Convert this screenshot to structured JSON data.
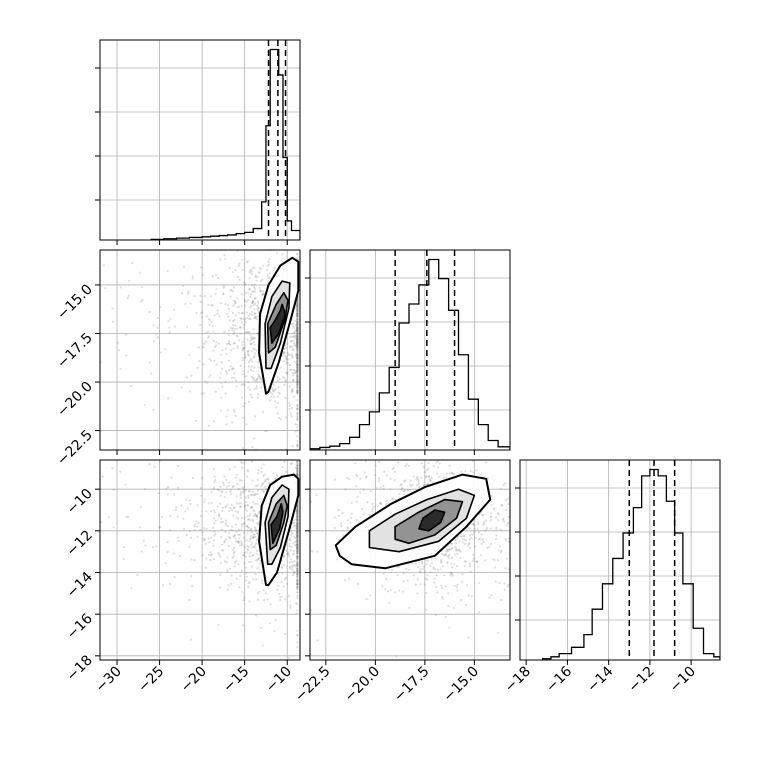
{
  "chart_data": [
    {
      "panel": "hist-x",
      "type": "histogram",
      "xlim": [
        -32,
        -8.5
      ],
      "xticks": [
        -30,
        -25,
        -20,
        -15,
        -10
      ],
      "bins": [
        -26.0,
        -24.5,
        -23.0,
        -21.5,
        -20.0,
        -19.0,
        -18.0,
        -17.0,
        -16.0,
        -15.0,
        -14.0,
        -13.0,
        -12.5,
        -12.0,
        -11.5,
        -11.0,
        -10.5,
        -10.0,
        -9.5,
        -8.5
      ],
      "counts": [
        1,
        2,
        3,
        4,
        5,
        6,
        7,
        8,
        10,
        12,
        18,
        60,
        180,
        300,
        300,
        260,
        130,
        30,
        15
      ],
      "quantiles": [
        -12.2,
        -11.1,
        -10.2
      ],
      "grid": true
    },
    {
      "panel": "hist-y",
      "type": "histogram",
      "xlim": [
        -23.3,
        -13.2
      ],
      "bins": [
        -23.3,
        -22.8,
        -22.3,
        -21.8,
        -21.3,
        -20.8,
        -20.3,
        -19.8,
        -19.3,
        -18.8,
        -18.3,
        -17.8,
        -17.3,
        -16.8,
        -16.3,
        -15.8,
        -15.3,
        -14.8,
        -14.3,
        -13.8,
        -13.2
      ],
      "counts": [
        2,
        4,
        6,
        10,
        20,
        40,
        60,
        90,
        130,
        200,
        230,
        260,
        300,
        270,
        220,
        150,
        80,
        40,
        15,
        5
      ],
      "quantiles": [
        -19.0,
        -17.4,
        -16.0
      ],
      "grid": true
    },
    {
      "panel": "hist-z",
      "type": "histogram",
      "xlim": [
        -18.3,
        -8.6
      ],
      "bins": [
        -17.2,
        -16.8,
        -16.4,
        -15.8,
        -15.2,
        -14.8,
        -14.3,
        -13.8,
        -13.3,
        -12.8,
        -12.4,
        -12.0,
        -11.6,
        -11.2,
        -10.8,
        -10.4,
        -9.9,
        -9.4,
        -8.9,
        -8.6
      ],
      "counts": [
        2,
        5,
        10,
        20,
        40,
        80,
        120,
        160,
        200,
        240,
        290,
        300,
        290,
        250,
        200,
        120,
        50,
        10,
        5
      ],
      "quantiles": [
        -13.0,
        -11.8,
        -10.8
      ],
      "grid": true
    },
    {
      "panel": "x-y",
      "type": "scatter-contour",
      "xlim": [
        -32,
        -8.5
      ],
      "ylim": [
        -23.5,
        -13.2
      ],
      "yticks": [
        -15.0,
        -17.5,
        -20.0,
        -22.5
      ],
      "ytick_labels": [
        "−15.0",
        "−17.5",
        "−20.0",
        "−22.5"
      ],
      "center": [
        -11.0,
        -17.4
      ],
      "levels": [
        {
          "points": [
            [
              -12.5,
              -20.6
            ],
            [
              -13.3,
              -18.5
            ],
            [
              -13.2,
              -16.5
            ],
            [
              -12.2,
              -15.0
            ],
            [
              -10.8,
              -14.0
            ],
            [
              -9.4,
              -13.6
            ],
            [
              -8.7,
              -13.8
            ],
            [
              -8.7,
              -15.3
            ],
            [
              -9.6,
              -16.8
            ],
            [
              -11.0,
              -19.0
            ],
            [
              -12.2,
              -20.5
            ]
          ],
          "fill": "#ffffff"
        },
        {
          "points": [
            [
              -12.5,
              -19.3
            ],
            [
              -12.6,
              -17.0
            ],
            [
              -11.8,
              -15.6
            ],
            [
              -10.6,
              -14.8
            ],
            [
              -9.7,
              -14.9
            ],
            [
              -9.8,
              -16.2
            ],
            [
              -10.8,
              -18.0
            ],
            [
              -11.9,
              -19.3
            ]
          ],
          "fill": "#e0e0e0"
        },
        {
          "points": [
            [
              -12.2,
              -18.5
            ],
            [
              -12.3,
              -17.0
            ],
            [
              -11.3,
              -16.0
            ],
            [
              -10.4,
              -15.4
            ],
            [
              -9.9,
              -15.8
            ],
            [
              -10.3,
              -16.8
            ],
            [
              -11.4,
              -18.2
            ]
          ],
          "fill": "#8c8c8c"
        },
        {
          "points": [
            [
              -11.8,
              -18.0
            ],
            [
              -12.0,
              -17.2
            ],
            [
              -11.4,
              -16.8
            ],
            [
              -10.8,
              -16.3
            ],
            [
              -10.6,
              -16.0
            ],
            [
              -10.2,
              -16.5
            ],
            [
              -11.0,
              -17.5
            ]
          ],
          "fill": "#222222"
        }
      ],
      "scatter_spread": [
        4.2,
        2.0
      ]
    },
    {
      "panel": "x-z",
      "type": "scatter-contour",
      "xlim": [
        -32,
        -8.5
      ],
      "ylim": [
        -18.2,
        -8.6
      ],
      "xticks": [
        -30,
        -25,
        -20,
        -15,
        -10
      ],
      "xtick_labels": [
        "−30",
        "−25",
        "−20",
        "−15",
        "−10"
      ],
      "yticks": [
        -10,
        -12,
        -14,
        -16,
        -18
      ],
      "ytick_labels": [
        "−10",
        "−12",
        "−14",
        "−16",
        "−18"
      ],
      "center": [
        -11.0,
        -11.5
      ],
      "levels": [
        {
          "points": [
            [
              -12.5,
              -14.6
            ],
            [
              -13.3,
              -12.5
            ],
            [
              -13.0,
              -10.8
            ],
            [
              -12.0,
              -9.8
            ],
            [
              -10.6,
              -9.4
            ],
            [
              -9.2,
              -9.3
            ],
            [
              -8.7,
              -9.5
            ],
            [
              -8.7,
              -10.3
            ],
            [
              -9.8,
              -12.0
            ],
            [
              -11.2,
              -14.0
            ],
            [
              -12.2,
              -14.6
            ]
          ],
          "fill": "#ffffff"
        },
        {
          "points": [
            [
              -12.3,
              -13.6
            ],
            [
              -12.6,
              -11.6
            ],
            [
              -11.8,
              -10.4
            ],
            [
              -10.6,
              -9.8
            ],
            [
              -9.8,
              -10.0
            ],
            [
              -9.9,
              -11.3
            ],
            [
              -10.8,
              -12.8
            ],
            [
              -11.8,
              -13.6
            ]
          ],
          "fill": "#e0e0e0"
        },
        {
          "points": [
            [
              -12.0,
              -12.9
            ],
            [
              -12.2,
              -11.6
            ],
            [
              -11.3,
              -10.7
            ],
            [
              -10.4,
              -10.3
            ],
            [
              -10.0,
              -10.8
            ],
            [
              -10.4,
              -11.6
            ],
            [
              -11.3,
              -12.7
            ]
          ],
          "fill": "#8c8c8c"
        },
        {
          "points": [
            [
              -11.7,
              -12.6
            ],
            [
              -11.9,
              -11.7
            ],
            [
              -11.2,
              -11.3
            ],
            [
              -10.7,
              -10.7
            ],
            [
              -10.5,
              -11.1
            ],
            [
              -10.9,
              -11.9
            ]
          ],
          "fill": "#222222"
        }
      ],
      "scatter_spread": [
        4.2,
        1.6
      ]
    },
    {
      "panel": "y-z",
      "type": "scatter-contour",
      "xlim": [
        -23.3,
        -13.2
      ],
      "ylim": [
        -18.2,
        -8.6
      ],
      "xticks": [
        -22.5,
        -20.0,
        -17.5,
        -15.0
      ],
      "xtick_labels": [
        "−22.5",
        "−20.0",
        "−17.5",
        "−15.0"
      ],
      "center": [
        -17.2,
        -11.6
      ],
      "levels": [
        {
          "points": [
            [
              -21.8,
              -13.2
            ],
            [
              -22.0,
              -12.7
            ],
            [
              -21.0,
              -11.8
            ],
            [
              -19.2,
              -10.7
            ],
            [
              -17.5,
              -9.9
            ],
            [
              -15.6,
              -9.3
            ],
            [
              -14.4,
              -9.5
            ],
            [
              -14.2,
              -10.5
            ],
            [
              -15.4,
              -11.8
            ],
            [
              -17.0,
              -13.2
            ],
            [
              -19.5,
              -13.8
            ],
            [
              -21.2,
              -13.6
            ]
          ],
          "fill": "#ffffff"
        },
        {
          "points": [
            [
              -20.3,
              -12.8
            ],
            [
              -20.3,
              -12.0
            ],
            [
              -19.0,
              -11.2
            ],
            [
              -17.4,
              -10.5
            ],
            [
              -15.8,
              -10.0
            ],
            [
              -15.0,
              -10.3
            ],
            [
              -15.4,
              -11.4
            ],
            [
              -16.8,
              -12.5
            ],
            [
              -18.8,
              -13.0
            ]
          ],
          "fill": "#e0e0e0"
        },
        {
          "points": [
            [
              -19.0,
              -12.4
            ],
            [
              -19.0,
              -11.8
            ],
            [
              -17.8,
              -11.1
            ],
            [
              -16.5,
              -10.5
            ],
            [
              -15.6,
              -10.6
            ],
            [
              -15.9,
              -11.4
            ],
            [
              -17.0,
              -12.2
            ],
            [
              -18.3,
              -12.6
            ]
          ],
          "fill": "#8c8c8c"
        },
        {
          "points": [
            [
              -17.8,
              -11.9
            ],
            [
              -17.6,
              -11.4
            ],
            [
              -17.0,
              -11.0
            ],
            [
              -16.5,
              -11.1
            ],
            [
              -16.7,
              -11.6
            ],
            [
              -17.3,
              -12.0
            ]
          ],
          "fill": "#222222"
        }
      ],
      "scatter_spread": [
        1.6,
        1.3
      ]
    }
  ],
  "hist_z_xtick_labels": [
    "−18",
    "−16",
    "−14",
    "−12",
    "−10"
  ],
  "hist_z_xticks": [
    -18,
    -16,
    -14,
    -12,
    -10
  ],
  "hist_y_xtick_labels": [
    "−22.5",
    "−20.0",
    "−17.5",
    "−15.0"
  ],
  "colors": {
    "line": "#000000",
    "grid": "#b0b0b0",
    "scatter": "#7a7a7a"
  }
}
